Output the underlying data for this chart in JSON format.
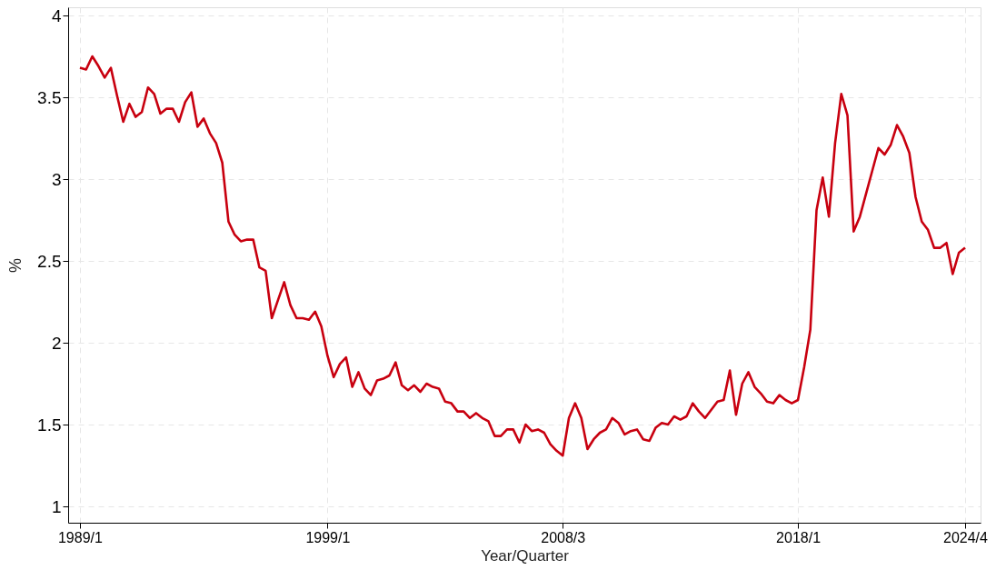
{
  "chart_data": {
    "type": "line",
    "xlabel": "Year/Quarter",
    "ylabel": "%",
    "categories": [
      "1989/1",
      null,
      null,
      null,
      null,
      null,
      null,
      null,
      null,
      null,
      null,
      null,
      null,
      null,
      null,
      null,
      null,
      null,
      null,
      null,
      null,
      null,
      null,
      null,
      null,
      null,
      null,
      null,
      null,
      null,
      null,
      null,
      null,
      null,
      null,
      null,
      null,
      null,
      null,
      null,
      "1999/1",
      null,
      null,
      null,
      null,
      null,
      null,
      null,
      null,
      null,
      null,
      null,
      null,
      null,
      null,
      null,
      null,
      null,
      null,
      null,
      null,
      null,
      null,
      null,
      null,
      null,
      null,
      null,
      null,
      null,
      null,
      null,
      null,
      null,
      null,
      null,
      null,
      null,
      "2008/3",
      null,
      null,
      null,
      null,
      null,
      null,
      null,
      null,
      null,
      null,
      null,
      null,
      null,
      null,
      null,
      null,
      null,
      null,
      null,
      null,
      null,
      null,
      null,
      null,
      null,
      null,
      null,
      null,
      null,
      null,
      null,
      null,
      null,
      null,
      null,
      null,
      null,
      "2018/1",
      null,
      null,
      null,
      null,
      null,
      null,
      null,
      null,
      null,
      null,
      null,
      null,
      null,
      null,
      null,
      null,
      null,
      null,
      null,
      null,
      null,
      null,
      null,
      null,
      null,
      null,
      "2024/4"
    ],
    "series": [
      {
        "color": "#c8000f",
        "values": [
          3.68,
          3.67,
          3.75,
          3.69,
          3.62,
          3.68,
          3.51,
          3.35,
          3.46,
          3.38,
          3.41,
          3.56,
          3.52,
          3.4,
          3.43,
          3.43,
          3.35,
          3.47,
          3.53,
          3.32,
          3.37,
          3.28,
          3.22,
          3.1,
          2.74,
          2.66,
          2.62,
          2.63,
          2.63,
          2.46,
          2.44,
          2.15,
          2.26,
          2.37,
          2.23,
          2.15,
          2.15,
          2.14,
          2.19,
          2.1,
          1.92,
          1.79,
          1.87,
          1.91,
          1.73,
          1.82,
          1.72,
          1.68,
          1.77,
          1.78,
          1.8,
          1.88,
          1.74,
          1.71,
          1.74,
          1.7,
          1.75,
          1.73,
          1.72,
          1.64,
          1.63,
          1.58,
          1.58,
          1.54,
          1.57,
          1.54,
          1.52,
          1.43,
          1.43,
          1.47,
          1.47,
          1.39,
          1.5,
          1.46,
          1.47,
          1.45,
          1.38,
          1.34,
          1.31,
          1.54,
          1.63,
          1.54,
          1.35,
          1.41,
          1.45,
          1.47,
          1.54,
          1.51,
          1.44,
          1.46,
          1.47,
          1.41,
          1.4,
          1.48,
          1.51,
          1.5,
          1.55,
          1.53,
          1.55,
          1.63,
          1.58,
          1.54,
          1.59,
          1.64,
          1.65,
          1.83,
          1.56,
          1.75,
          1.82,
          1.73,
          1.69,
          1.64,
          1.63,
          1.68,
          1.65,
          1.63,
          1.65,
          1.85,
          2.08,
          2.81,
          3.01,
          2.77,
          3.22,
          3.52,
          3.39,
          2.68,
          2.77,
          2.91,
          3.05,
          3.19,
          3.15,
          3.21,
          3.33,
          3.26,
          3.16,
          2.89,
          2.74,
          2.69,
          2.58,
          2.58,
          2.61,
          2.42,
          2.55,
          2.58
        ]
      }
    ],
    "ylim": [
      0.9,
      4.05
    ],
    "yticks": [
      1,
      1.5,
      2,
      2.5,
      3,
      3.5,
      4
    ],
    "grid": true,
    "line_style": "solid",
    "marker": "none"
  }
}
